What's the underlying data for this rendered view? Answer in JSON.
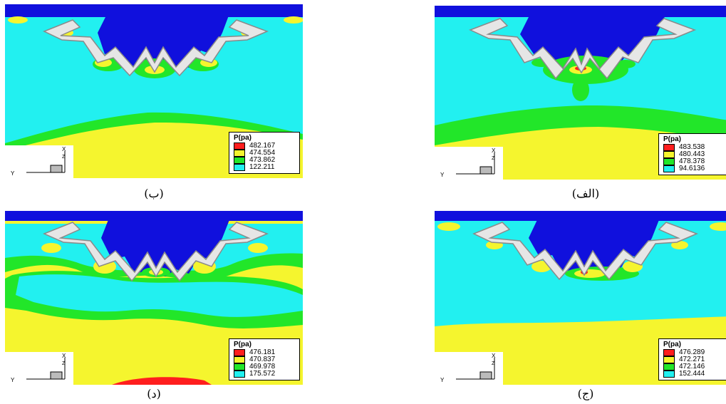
{
  "colors": {
    "red": "#ff1e1e",
    "yellow": "#f5f52e",
    "green": "#22e629",
    "cyan": "#22f0f0",
    "blue": "#1010dd",
    "gear": "#e6e6e6"
  },
  "panels": [
    {
      "id": "b",
      "caption": "(ب)",
      "legend_title": "P(pa)",
      "legend_values": [
        "482.167",
        "474.554",
        "473.862",
        "122.211"
      ]
    },
    {
      "id": "alef",
      "caption": "(الف)",
      "legend_title": "P(pa)",
      "legend_values": [
        "483.538",
        "480.443",
        "478.378",
        "94.6136"
      ]
    },
    {
      "id": "dal",
      "caption": "(د)",
      "legend_title": "P(pa)",
      "legend_values": [
        "476.181",
        "470.837",
        "469.978",
        "175.572"
      ]
    },
    {
      "id": "jim",
      "caption": "(ج)",
      "legend_title": "P(pa)",
      "legend_values": [
        "476.289",
        "472.271",
        "472.146",
        "152.444"
      ]
    }
  ],
  "axes": {
    "x_label": "X",
    "y_label": "Y",
    "z_label": "Z"
  }
}
